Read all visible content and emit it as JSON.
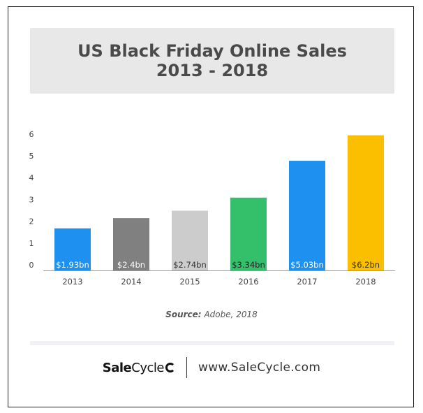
{
  "title_line1": "US Black Friday Online Sales",
  "title_line2": "2013 - 2018",
  "source_label": "Source:",
  "source_text": "Adobe, 2018",
  "footer": {
    "logo_sale": "Sale",
    "logo_cycle": "Cycle",
    "website": "www.SaleCycle.com"
  },
  "chart_data": {
    "type": "bar",
    "title": "US Black Friday Online Sales 2013 - 2018",
    "xlabel": "",
    "ylabel": "",
    "categories": [
      "2013",
      "2014",
      "2015",
      "2016",
      "2017",
      "2018"
    ],
    "values": [
      1.93,
      2.4,
      2.74,
      3.34,
      5.03,
      6.2
    ],
    "data_labels": [
      "$1.93bn",
      "$2.4bn",
      "$2.74bn",
      "$3.34bn",
      "$5.03bn",
      "$6.2bn"
    ],
    "yticks": [
      0,
      1,
      2,
      3,
      4,
      5,
      6
    ],
    "ylim": [
      0,
      6.4
    ],
    "grid": false,
    "legend": "none",
    "colors": [
      "#1e90f0",
      "#808080",
      "#cccccc",
      "#34c06a",
      "#1e90f0",
      "#fcbf00"
    ],
    "label_colors": [
      "#ffffff",
      "#ffffff",
      "#333333",
      "#222222",
      "#ffffff",
      "#333333"
    ]
  }
}
